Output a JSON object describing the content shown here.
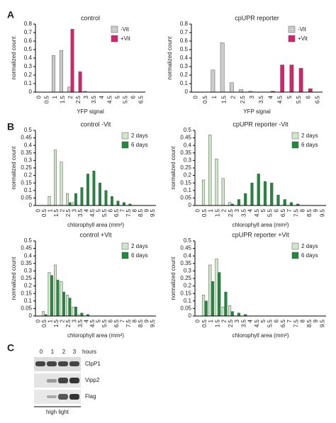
{
  "panels": [
    "A",
    "B",
    "C"
  ],
  "chart_data": [
    {
      "type": "bar",
      "title": "control",
      "xlabel": "YFP signal",
      "ylabel": "normalized count",
      "categories": [
        "0",
        "0.5",
        "1",
        "1.5",
        "2",
        "2.5",
        "3",
        "3.5",
        "4",
        "4.5",
        "5",
        "5.5",
        "6",
        "6.5"
      ],
      "series": [
        {
          "name": "-Vit",
          "color": "#cccccc",
          "values": [
            0,
            0,
            0.43,
            0.49,
            0.06,
            0,
            0.01,
            0,
            0,
            0,
            0,
            0,
            0,
            0
          ]
        },
        {
          "name": "+Vit",
          "color": "#d6236e",
          "values": [
            0,
            0,
            0,
            0,
            0.74,
            0.24,
            0,
            0,
            0,
            0,
            0,
            0,
            0,
            0
          ]
        }
      ],
      "ylim": [
        0,
        0.8
      ],
      "yticks": [
        0,
        0.1,
        0.2,
        0.3,
        0.4,
        0.5,
        0.6,
        0.7,
        0.8
      ]
    },
    {
      "type": "bar",
      "title": "cpUPR reporter",
      "xlabel": "YFP signal",
      "ylabel": "normalized count",
      "categories": [
        "0",
        "0.5",
        "1",
        "1.5",
        "2",
        "2.5",
        "3",
        "3.5",
        "4",
        "4.5",
        "5",
        "5.5",
        "6",
        "6.5"
      ],
      "series": [
        {
          "name": "-Vit",
          "color": "#cccccc",
          "values": [
            0,
            0,
            0.26,
            0.58,
            0.11,
            0.03,
            0.01,
            0,
            0,
            0,
            0,
            0,
            0,
            0
          ]
        },
        {
          "name": "+Vit",
          "color": "#d6236e",
          "values": [
            0,
            0,
            0,
            0,
            0,
            0,
            0,
            0,
            0.01,
            0.32,
            0.32,
            0.28,
            0.04,
            0
          ]
        }
      ],
      "ylim": [
        0,
        0.8
      ],
      "yticks": [
        0,
        0.1,
        0.2,
        0.3,
        0.4,
        0.5,
        0.6,
        0.7,
        0.8
      ]
    },
    {
      "type": "bar",
      "title": "control -Vit",
      "xlabel": "chlorophyll area (mm²)",
      "ylabel": "normalized count",
      "categories": [
        "0",
        "0.5",
        "1",
        "1.5",
        "2",
        "2.5",
        "3",
        "3.5",
        "4",
        "4.5",
        "5",
        "5.5",
        "6",
        "6.5",
        "7",
        "7.5",
        "8",
        "8.5",
        "9",
        "9.5"
      ],
      "series": [
        {
          "name": "2 days",
          "color": "#cfe6c8",
          "values": [
            0,
            0,
            0.06,
            0.37,
            0.29,
            0.08,
            0.02,
            0,
            0,
            0,
            0,
            0,
            0,
            0,
            0,
            0,
            0,
            0,
            0,
            0
          ]
        },
        {
          "name": "6 days",
          "color": "#1e8a3c",
          "values": [
            0,
            0,
            0,
            0,
            0,
            0.02,
            0.08,
            0.12,
            0.21,
            0.23,
            0.15,
            0.1,
            0.06,
            0.03,
            0.02,
            0.01,
            0,
            0,
            0,
            0
          ]
        }
      ],
      "ylim": [
        0,
        0.5
      ],
      "yticks": [
        0,
        0.05,
        0.1,
        0.15,
        0.2,
        0.25,
        0.3,
        0.35,
        0.4,
        0.45,
        0.5
      ]
    },
    {
      "type": "bar",
      "title": "cpUPR reporter -Vit",
      "xlabel": "chlorophyll area (mm²)",
      "ylabel": "normalized count",
      "categories": [
        "0",
        "0.5",
        "1",
        "1.5",
        "2",
        "2.5",
        "3",
        "3.5",
        "4",
        "4.5",
        "5",
        "5.5",
        "6",
        "6.5",
        "7",
        "7.5",
        "8",
        "8.5",
        "9",
        "9.5"
      ],
      "series": [
        {
          "name": "2 days",
          "color": "#cfe6c8",
          "values": [
            0,
            0.17,
            0.47,
            0.31,
            0.18,
            0.02,
            0,
            0,
            0,
            0,
            0,
            0,
            0,
            0,
            0,
            0,
            0,
            0,
            0,
            0
          ]
        },
        {
          "name": "6 days",
          "color": "#1e8a3c",
          "values": [
            0,
            0,
            0,
            0,
            0,
            0.01,
            0.04,
            0.08,
            0.15,
            0.21,
            0.16,
            0.15,
            0.07,
            0.04,
            0.02,
            0.01,
            0,
            0,
            0,
            0
          ]
        }
      ],
      "ylim": [
        0,
        0.5
      ],
      "yticks": [
        0,
        0.05,
        0.1,
        0.15,
        0.2,
        0.25,
        0.3,
        0.35,
        0.4,
        0.45,
        0.5
      ]
    },
    {
      "type": "bar",
      "title": "control  +Vit",
      "xlabel": "chlorophyll area (mm²)",
      "ylabel": "normalized count",
      "categories": [
        "0",
        "0.5",
        "1",
        "1.5",
        "2",
        "2.5",
        "3",
        "3.5",
        "4",
        "4.5",
        "5",
        "5.5",
        "6",
        "6.5",
        "7",
        "7.5",
        "8",
        "8.5",
        "9",
        "9.5"
      ],
      "series": [
        {
          "name": "2 days",
          "color": "#cfe6c8",
          "values": [
            0,
            0.03,
            0.29,
            0.34,
            0.23,
            0.14,
            0.06,
            0.01,
            0,
            0,
            0,
            0,
            0,
            0,
            0,
            0,
            0,
            0,
            0,
            0
          ]
        },
        {
          "name": "6 days",
          "color": "#1e8a3c",
          "values": [
            0,
            0.01,
            0.27,
            0.24,
            0.16,
            0.12,
            0.06,
            0.02,
            0.01,
            0,
            0,
            0,
            0,
            0,
            0,
            0,
            0,
            0,
            0,
            0
          ]
        }
      ],
      "ylim": [
        0,
        0.5
      ],
      "yticks": [
        0,
        0.05,
        0.1,
        0.15,
        0.2,
        0.25,
        0.3,
        0.35,
        0.4,
        0.45,
        0.5
      ]
    },
    {
      "type": "bar",
      "title": "cpUPR reporter  +Vit",
      "xlabel": "chlorophyll area (mm²)",
      "ylabel": "normalized count",
      "categories": [
        "0",
        "0.5",
        "1",
        "1.5",
        "2",
        "2.5",
        "3",
        "3.5",
        "4",
        "4.5",
        "5",
        "5.5",
        "6",
        "6.5",
        "7",
        "7.5",
        "8",
        "8.5",
        "9",
        "9.5"
      ],
      "series": [
        {
          "name": "2 days",
          "color": "#cfe6c8",
          "values": [
            0,
            0.14,
            0.34,
            0.38,
            0.06,
            0.07,
            0,
            0,
            0,
            0,
            0,
            0,
            0,
            0,
            0,
            0,
            0,
            0,
            0,
            0
          ]
        },
        {
          "name": "6 days",
          "color": "#1e8a3c",
          "values": [
            0,
            0.1,
            0.23,
            0.29,
            0.16,
            0.03,
            0.02,
            0.01,
            0,
            0,
            0,
            0,
            0,
            0,
            0,
            0,
            0,
            0,
            0,
            0
          ]
        }
      ],
      "ylim": [
        0,
        0.5
      ],
      "yticks": [
        0,
        0.05,
        0.1,
        0.15,
        0.2,
        0.25,
        0.3,
        0.35,
        0.4,
        0.45,
        0.5
      ]
    }
  ],
  "blot": {
    "lanes": [
      "0",
      "1",
      "2",
      "3"
    ],
    "unit": "hours",
    "rows": [
      "ClpP1",
      "Vipp2",
      "Flag"
    ],
    "condition": "high light"
  }
}
